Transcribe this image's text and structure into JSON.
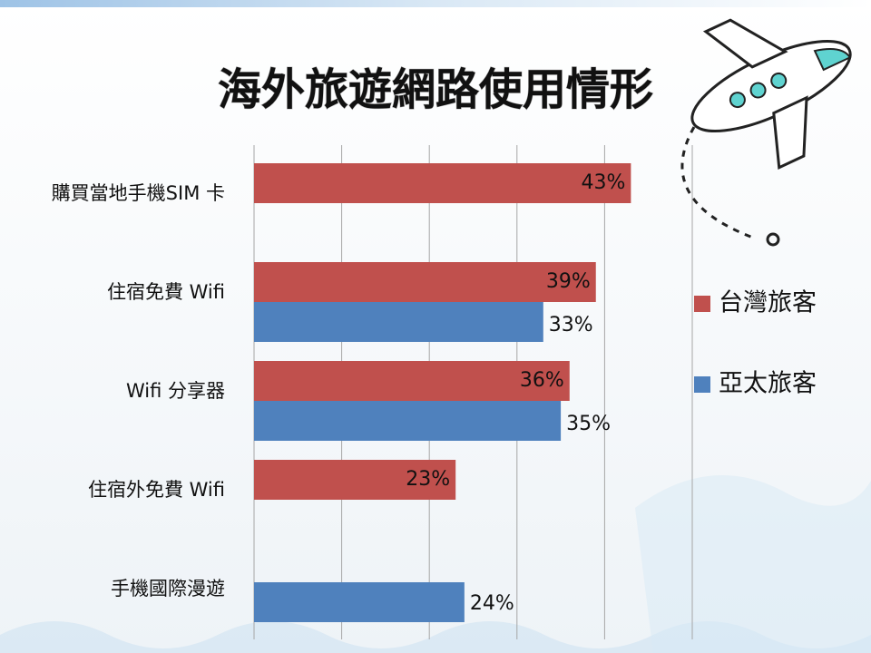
{
  "chart_data": {
    "type": "hbar",
    "title": "海外旅遊網路使用情形",
    "categories": [
      "購買當地手機SIM 卡",
      "住宿免費 Wifi",
      "Wifi 分享器",
      "住宿外免費 Wifi",
      "手機國際漫遊"
    ],
    "series": [
      {
        "name": "台灣旅客",
        "color": "#c0504d",
        "values": [
          43,
          39,
          36,
          23,
          null
        ],
        "value_labels": [
          "43%",
          "39%",
          "36%",
          "23%",
          null
        ]
      },
      {
        "name": "亞太旅客",
        "color": "#4f81bd",
        "values": [
          null,
          33,
          35,
          null,
          24
        ],
        "value_labels": [
          null,
          "33%",
          "35%",
          null,
          "24%"
        ]
      }
    ],
    "xlim": [
      0,
      50
    ],
    "xticks": [
      0,
      10,
      20,
      30,
      40,
      50
    ],
    "grid": true,
    "legend": "right"
  }
}
